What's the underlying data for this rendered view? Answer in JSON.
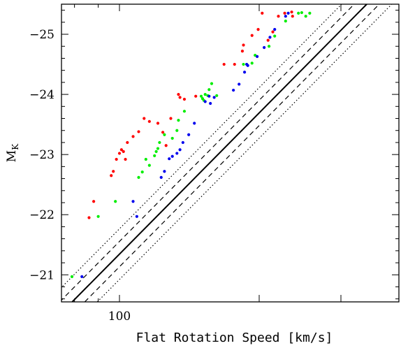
{
  "chart_data": {
    "type": "scatter",
    "xlabel": "Flat Rotation Speed [km/s]",
    "ylabel_main": "M",
    "ylabel_sub": "K",
    "x_scale": "log",
    "xlim": [
      75,
      400
    ],
    "ylim": [
      -20.55,
      -25.5
    ],
    "y_ticks": [
      -21,
      -22,
      -23,
      -24,
      -25
    ],
    "y_tick_labels": [
      "−21",
      "−22",
      "−23",
      "−24",
      "−25"
    ],
    "x_tick_labels": [
      {
        "value": 100,
        "label": "100"
      }
    ],
    "x_major_ticks": [
      100,
      200,
      300
    ],
    "x_minor_ticks": [
      80,
      90,
      400
    ],
    "y_minor_step": 0.2,
    "relation": {
      "points": [
        [
          79.1,
          -20.55
        ],
        [
          341,
          -25.5
        ]
      ],
      "dash_offset_dex": 0.027,
      "dot_offset_dex": 0.054
    },
    "series": [
      {
        "color": "#ff0000",
        "points": [
          [
            86,
            -21.95
          ],
          [
            88,
            -22.22
          ],
          [
            96,
            -22.65
          ],
          [
            97,
            -22.72
          ],
          [
            98.5,
            -22.92
          ],
          [
            100,
            -23.02
          ],
          [
            101,
            -23.08
          ],
          [
            102,
            -23.05
          ],
          [
            103,
            -22.92
          ],
          [
            104,
            -23.2
          ],
          [
            107,
            -23.3
          ],
          [
            110,
            -23.38
          ],
          [
            113,
            -23.6
          ],
          [
            116,
            -23.55
          ],
          [
            121,
            -23.52
          ],
          [
            124,
            -23.37
          ],
          [
            126,
            -23.15
          ],
          [
            129,
            -23.6
          ],
          [
            134,
            -24.0
          ],
          [
            135,
            -23.95
          ],
          [
            138,
            -23.92
          ],
          [
            146,
            -23.97
          ],
          [
            168,
            -24.5
          ],
          [
            177,
            -24.5
          ],
          [
            184,
            -24.72
          ],
          [
            185,
            -24.82
          ],
          [
            193,
            -24.98
          ],
          [
            199,
            -25.08
          ],
          [
            203,
            -25.35
          ],
          [
            209,
            -24.9
          ],
          [
            214,
            -25.04
          ],
          [
            220,
            -25.3
          ],
          [
            227,
            -25.35
          ],
          [
            235,
            -25.37
          ],
          [
            236,
            -25.3
          ]
        ]
      },
      {
        "color": "#00ee00",
        "points": [
          [
            79,
            -20.97
          ],
          [
            90,
            -21.97
          ],
          [
            98,
            -22.22
          ],
          [
            110,
            -22.62
          ],
          [
            112,
            -22.71
          ],
          [
            114,
            -22.92
          ],
          [
            116,
            -22.82
          ],
          [
            119,
            -22.98
          ],
          [
            120,
            -23.05
          ],
          [
            121,
            -23.1
          ],
          [
            122,
            -23.2
          ],
          [
            125,
            -23.33
          ],
          [
            130,
            -23.27
          ],
          [
            133,
            -23.4
          ],
          [
            134,
            -23.57
          ],
          [
            138,
            -23.72
          ],
          [
            150,
            -23.97
          ],
          [
            151,
            -23.93
          ],
          [
            152,
            -23.9
          ],
          [
            153,
            -24.0
          ],
          [
            155,
            -23.98
          ],
          [
            156,
            -24.08
          ],
          [
            158,
            -24.18
          ],
          [
            162,
            -23.98
          ],
          [
            185,
            -24.5
          ],
          [
            188,
            -24.5
          ],
          [
            193,
            -24.52
          ],
          [
            196,
            -24.65
          ],
          [
            210,
            -24.8
          ],
          [
            216,
            -24.97
          ],
          [
            228,
            -25.22
          ],
          [
            243,
            -25.35
          ],
          [
            247,
            -25.36
          ],
          [
            252,
            -25.3
          ],
          [
            257,
            -25.35
          ]
        ]
      },
      {
        "color": "#0000ee",
        "points": [
          [
            83,
            -20.97
          ],
          [
            107,
            -22.22
          ],
          [
            109,
            -21.97
          ],
          [
            123,
            -22.62
          ],
          [
            125,
            -22.72
          ],
          [
            128,
            -22.93
          ],
          [
            130,
            -22.97
          ],
          [
            133,
            -23.02
          ],
          [
            135,
            -23.08
          ],
          [
            137,
            -23.2
          ],
          [
            141,
            -23.33
          ],
          [
            145,
            -23.52
          ],
          [
            153,
            -23.88
          ],
          [
            156,
            -23.97
          ],
          [
            157,
            -23.85
          ],
          [
            160,
            -23.95
          ],
          [
            176,
            -24.07
          ],
          [
            181,
            -24.17
          ],
          [
            186,
            -24.37
          ],
          [
            188,
            -24.5
          ],
          [
            189,
            -24.48
          ],
          [
            198,
            -24.63
          ],
          [
            205,
            -24.78
          ],
          [
            211,
            -24.95
          ],
          [
            216,
            -25.08
          ],
          [
            228,
            -25.3
          ],
          [
            231,
            -25.35
          ]
        ]
      }
    ]
  }
}
